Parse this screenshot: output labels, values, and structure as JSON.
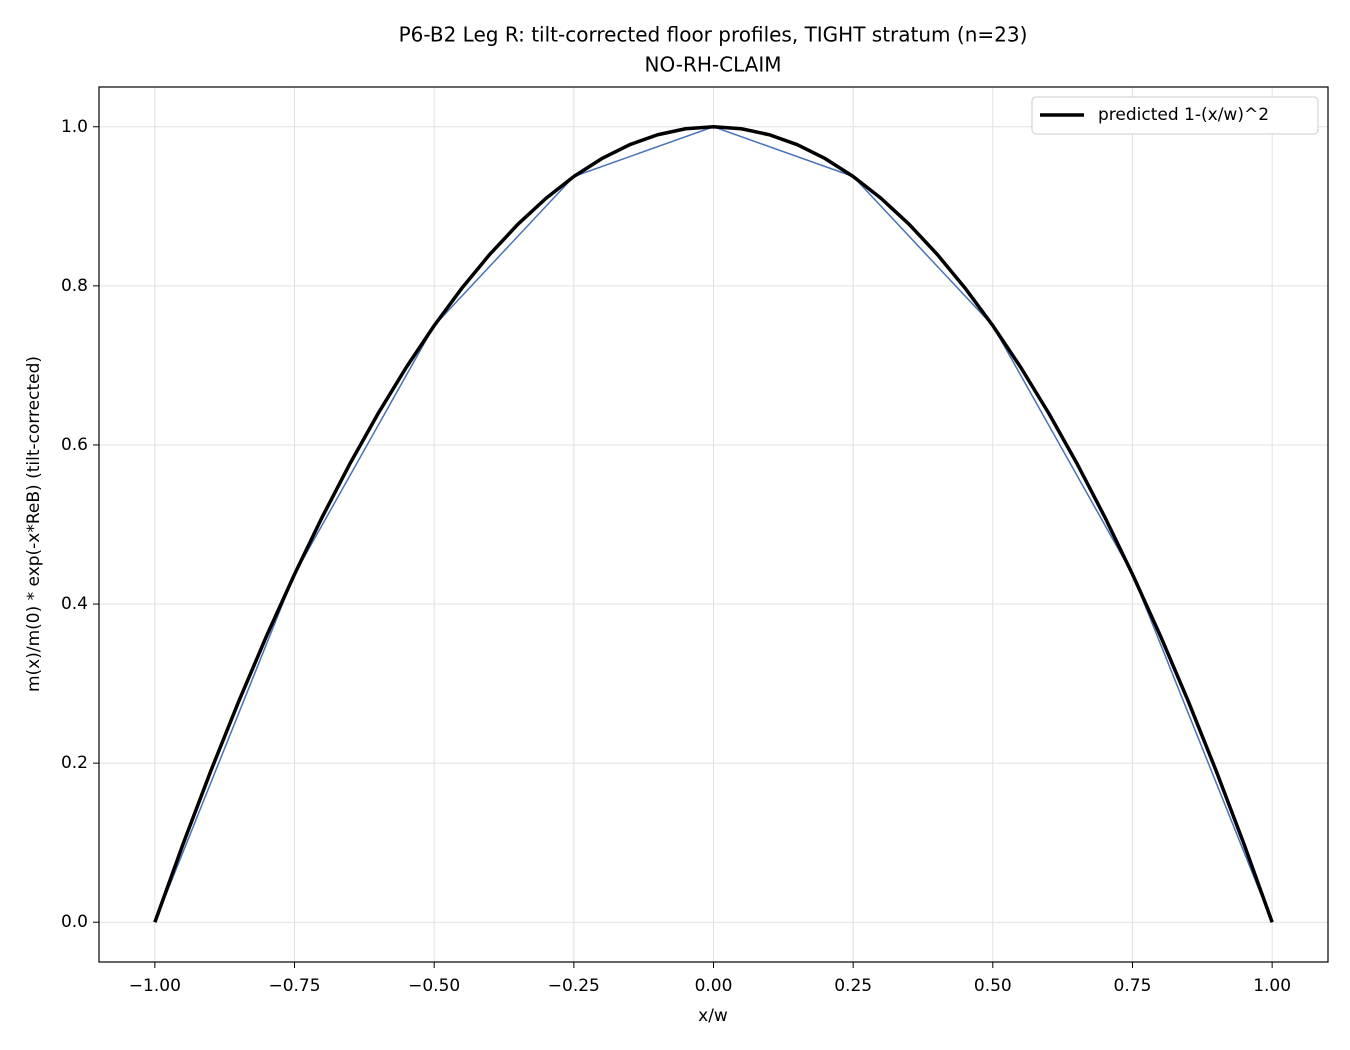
{
  "chart_data": {
    "type": "line",
    "title": "P6-B2 Leg R: tilt-corrected floor profiles, TIGHT stratum (n=23)",
    "subtitle": "NO-RH-CLAIM",
    "xlabel": "x/w",
    "ylabel": "m(x)/m(0) * exp(-x*ReB)  (tilt-corrected)",
    "xlim": [
      -1.1,
      1.1
    ],
    "ylim": [
      -0.05,
      1.05
    ],
    "xticks": [
      {
        "value": -1,
        "label": "−1.00"
      },
      {
        "value": -0.75,
        "label": "−0.75"
      },
      {
        "value": -0.5,
        "label": "−0.50"
      },
      {
        "value": -0.25,
        "label": "−0.25"
      },
      {
        "value": 0,
        "label": "0.00"
      },
      {
        "value": 0.25,
        "label": "0.25"
      },
      {
        "value": 0.5,
        "label": "0.50"
      },
      {
        "value": 0.75,
        "label": "0.75"
      },
      {
        "value": 1,
        "label": "1.00"
      }
    ],
    "yticks": [
      {
        "value": 0,
        "label": "0.0"
      },
      0.2,
      0.4,
      0.6,
      0.8,
      {
        "value": 1,
        "label": "1.0"
      }
    ],
    "grid": true,
    "legend": "upper right",
    "series": [
      {
        "color": "#4a72b8",
        "width": 1.5,
        "x": [
          -1,
          -0.75,
          -0.5,
          -0.25,
          0,
          0.25,
          0.5,
          0.75,
          1
        ],
        "values": [
          0,
          0.4375,
          0.75,
          0.9375,
          1,
          0.9375,
          0.75,
          0.4375,
          0
        ]
      },
      {
        "name": "predicted 1-(x/w)^2",
        "color": "#000000",
        "width": 3.5,
        "x": [
          -1,
          -0.95,
          -0.9,
          -0.85,
          -0.8,
          -0.75,
          -0.7,
          -0.65,
          -0.6,
          -0.55,
          -0.5,
          -0.45,
          -0.4,
          -0.35,
          -0.3,
          -0.25,
          -0.2,
          -0.15,
          -0.1,
          -0.05,
          0,
          0.05,
          0.1,
          0.15,
          0.2,
          0.25,
          0.3,
          0.35,
          0.4,
          0.45,
          0.5,
          0.55,
          0.6,
          0.65,
          0.7,
          0.75,
          0.8,
          0.85,
          0.9,
          0.95,
          1
        ],
        "values": [
          0,
          0.0975,
          0.19,
          0.2775,
          0.36,
          0.4375,
          0.51,
          0.5775,
          0.64,
          0.6975,
          0.75,
          0.7975,
          0.84,
          0.8775,
          0.91,
          0.9375,
          0.96,
          0.9775,
          0.99,
          0.9975,
          1,
          0.9975,
          0.99,
          0.9775,
          0.96,
          0.9375,
          0.91,
          0.8775,
          0.84,
          0.7975,
          0.75,
          0.6975,
          0.64,
          0.5775,
          0.51,
          0.4375,
          0.36,
          0.2775,
          0.19,
          0.0975,
          0
        ]
      }
    ]
  }
}
